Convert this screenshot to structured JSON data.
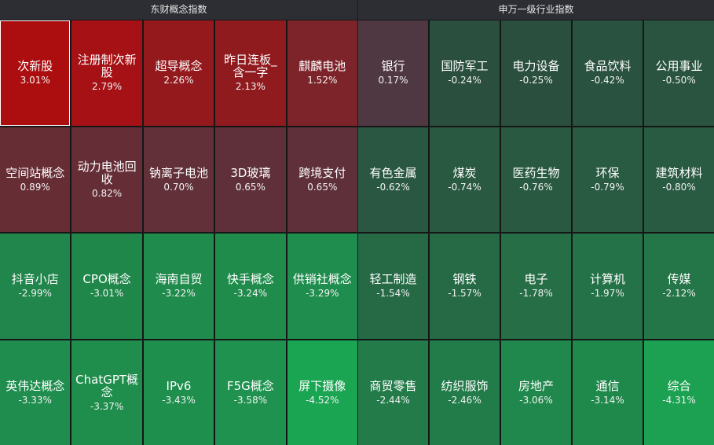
{
  "chart_data": [
    {
      "type": "heatmap",
      "title": "东财概念指数",
      "categories": [
        "次新股",
        "注册制次新股",
        "超导概念",
        "昨日连板_含一字",
        "麒麟电池",
        "空间站概念",
        "动力电池回收",
        "钠离子电池",
        "3D玻璃",
        "跨境支付",
        "抖音小店",
        "CPO概念",
        "海南自贸",
        "快手概念",
        "供销社概念",
        "英伟达概念",
        "ChatGPT概念",
        "IPv6",
        "F5G概念",
        "屏下摄像"
      ],
      "values": [
        3.01,
        2.79,
        2.26,
        2.13,
        1.52,
        0.89,
        0.82,
        0.7,
        0.65,
        0.65,
        -2.99,
        -3.01,
        -3.22,
        -3.24,
        -3.29,
        -3.33,
        -3.37,
        -3.43,
        -3.58,
        -4.52
      ],
      "value_labels": [
        "3.01%",
        "2.79%",
        "2.26%",
        "2.13%",
        "1.52%",
        "0.89%",
        "0.82%",
        "0.70%",
        "0.65%",
        "0.65%",
        "-2.99%",
        "-3.01%",
        "-3.22%",
        "-3.24%",
        "-3.29%",
        "-3.33%",
        "-3.37%",
        "-3.43%",
        "-3.58%",
        "-4.52%"
      ]
    },
    {
      "type": "heatmap",
      "title": "申万一级行业指数",
      "categories": [
        "银行",
        "国防军工",
        "电力设备",
        "食品饮料",
        "公用事业",
        "有色金属",
        "煤炭",
        "医药生物",
        "环保",
        "建筑材料",
        "轻工制造",
        "钢铁",
        "电子",
        "计算机",
        "传媒",
        "商贸零售",
        "纺织服饰",
        "房地产",
        "通信",
        "综合"
      ],
      "values": [
        0.17,
        -0.24,
        -0.25,
        -0.42,
        -0.5,
        -0.62,
        -0.74,
        -0.76,
        -0.79,
        -0.8,
        -1.54,
        -1.57,
        -1.78,
        -1.97,
        -2.12,
        -2.44,
        -2.46,
        -3.06,
        -3.14,
        -4.31
      ],
      "value_labels": [
        "0.17%",
        "-0.24%",
        "-0.25%",
        "-0.42%",
        "-0.50%",
        "-0.62%",
        "-0.74%",
        "-0.76%",
        "-0.79%",
        "-0.80%",
        "-1.54%",
        "-1.57%",
        "-1.78%",
        "-1.97%",
        "-2.12%",
        "-2.44%",
        "-2.46%",
        "-3.06%",
        "-3.14%",
        "-4.31%"
      ]
    }
  ]
}
